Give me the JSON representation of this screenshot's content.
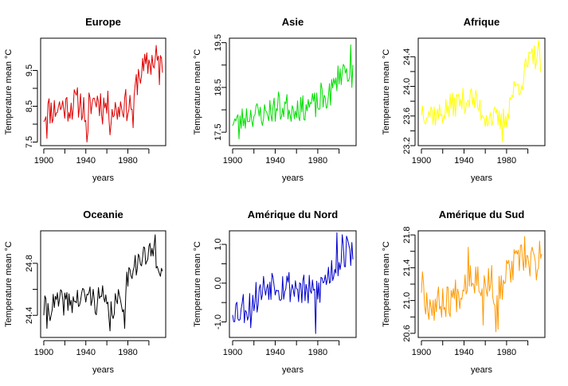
{
  "chart_data": [
    {
      "type": "line",
      "title": "Europe",
      "xlabel": "years",
      "ylabel": "Temperature mean °C",
      "color": "#dd0000",
      "xlim": [
        1897,
        2016
      ],
      "ylim": [
        7.4,
        10.4
      ],
      "xticks": [
        "1900",
        "1940",
        "1980"
      ],
      "yticks": [
        "7.5",
        "8.5",
        "9.5"
      ],
      "grid": false,
      "x_start": 1900,
      "x_end": 2013,
      "anchors": [
        [
          1900,
          8.3
        ],
        [
          1905,
          8.4
        ],
        [
          1910,
          8.4
        ],
        [
          1915,
          8.5
        ],
        [
          1920,
          8.5
        ],
        [
          1925,
          8.5
        ],
        [
          1930,
          8.6
        ],
        [
          1935,
          8.6
        ],
        [
          1940,
          8.3
        ],
        [
          1945,
          8.6
        ],
        [
          1950,
          8.7
        ],
        [
          1955,
          8.6
        ],
        [
          1960,
          8.5
        ],
        [
          1965,
          8.4
        ],
        [
          1970,
          8.4
        ],
        [
          1975,
          8.6
        ],
        [
          1980,
          8.5
        ],
        [
          1985,
          8.6
        ],
        [
          1990,
          9.4
        ],
        [
          1995,
          9.5
        ],
        [
          2000,
          9.7
        ],
        [
          2005,
          9.8
        ],
        [
          2010,
          9.8
        ],
        [
          2013,
          9.8
        ]
      ],
      "noise": 0.45,
      "seed": 11,
      "spikes": [
        [
          1903,
          7.6
        ],
        [
          1941,
          7.5
        ],
        [
          1942,
          7.8
        ],
        [
          1956,
          8.0
        ],
        [
          1963,
          7.7
        ],
        [
          1985,
          7.9
        ],
        [
          2007,
          10.2
        ],
        [
          2010,
          9.1
        ]
      ]
    },
    {
      "type": "line",
      "title": "Asie",
      "xlabel": "years",
      "ylabel": "Temperature mean °C",
      "color": "#00dd00",
      "xlim": [
        1897,
        2016
      ],
      "ylim": [
        17.2,
        19.6
      ],
      "xticks": [
        "1900",
        "1940",
        "1980"
      ],
      "yticks": [
        "17.5",
        "18.5",
        "19.5"
      ],
      "grid": false,
      "x_start": 1900,
      "x_end": 2013,
      "anchors": [
        [
          1900,
          17.8
        ],
        [
          1905,
          17.7
        ],
        [
          1910,
          17.8
        ],
        [
          1915,
          17.9
        ],
        [
          1920,
          17.9
        ],
        [
          1925,
          17.9
        ],
        [
          1930,
          17.9
        ],
        [
          1935,
          18.0
        ],
        [
          1940,
          18.0
        ],
        [
          1945,
          18.0
        ],
        [
          1950,
          18.1
        ],
        [
          1955,
          18.0
        ],
        [
          1960,
          18.1
        ],
        [
          1965,
          18.0
        ],
        [
          1970,
          18.1
        ],
        [
          1975,
          18.1
        ],
        [
          1980,
          18.1
        ],
        [
          1985,
          18.2
        ],
        [
          1990,
          18.3
        ],
        [
          1995,
          18.5
        ],
        [
          2000,
          18.8
        ],
        [
          2005,
          18.9
        ],
        [
          2010,
          18.8
        ],
        [
          2013,
          18.8
        ]
      ],
      "noise": 0.3,
      "seed": 23,
      "spikes": [
        [
          1906,
          17.35
        ],
        [
          1943,
          18.4
        ],
        [
          1983,
          18.6
        ],
        [
          2011,
          19.45
        ],
        [
          2012,
          18.5
        ]
      ]
    },
    {
      "type": "line",
      "title": "Afrique",
      "xlabel": "years",
      "ylabel": "Temperature mean °C",
      "color": "#ffff00",
      "xlim": [
        1897,
        2016
      ],
      "ylim": [
        23.2,
        24.65
      ],
      "xticks": [
        "1900",
        "1940",
        "1980"
      ],
      "yticks": [
        "23.2",
        "23.6",
        "24.0",
        "24.4"
      ],
      "grid": false,
      "x_start": 1900,
      "x_end": 2013,
      "anchors": [
        [
          1900,
          23.7
        ],
        [
          1905,
          23.65
        ],
        [
          1910,
          23.65
        ],
        [
          1915,
          23.6
        ],
        [
          1920,
          23.65
        ],
        [
          1925,
          23.7
        ],
        [
          1930,
          23.75
        ],
        [
          1935,
          23.8
        ],
        [
          1940,
          23.8
        ],
        [
          1945,
          23.85
        ],
        [
          1950,
          23.8
        ],
        [
          1955,
          23.7
        ],
        [
          1960,
          23.6
        ],
        [
          1965,
          23.6
        ],
        [
          1970,
          23.55
        ],
        [
          1975,
          23.5
        ],
        [
          1980,
          23.6
        ],
        [
          1985,
          23.9
        ],
        [
          1990,
          24.0
        ],
        [
          1995,
          24.1
        ],
        [
          2000,
          24.3
        ],
        [
          2005,
          24.4
        ],
        [
          2010,
          24.4
        ],
        [
          2013,
          24.3
        ]
      ],
      "noise": 0.18,
      "seed": 37,
      "spikes": [
        [
          1976,
          23.25
        ],
        [
          2010,
          24.62
        ],
        [
          2012,
          24.2
        ]
      ]
    },
    {
      "type": "line",
      "title": "Oceanie",
      "xlabel": "years",
      "ylabel": "Temperature mean °C",
      "color": "#000000",
      "xlim": [
        1897,
        2016
      ],
      "ylim": [
        24.23,
        25.05
      ],
      "xticks": [
        "1900",
        "1940",
        "1980"
      ],
      "yticks": [
        "24.4",
        "24.8"
      ],
      "grid": false,
      "x_start": 1900,
      "x_end": 2013,
      "anchors": [
        [
          1900,
          24.45
        ],
        [
          1905,
          24.45
        ],
        [
          1910,
          24.48
        ],
        [
          1915,
          24.5
        ],
        [
          1920,
          24.5
        ],
        [
          1925,
          24.5
        ],
        [
          1930,
          24.52
        ],
        [
          1935,
          24.52
        ],
        [
          1940,
          24.55
        ],
        [
          1945,
          24.55
        ],
        [
          1950,
          24.5
        ],
        [
          1955,
          24.55
        ],
        [
          1960,
          24.45
        ],
        [
          1965,
          24.45
        ],
        [
          1970,
          24.5
        ],
        [
          1975,
          24.5
        ],
        [
          1980,
          24.7
        ],
        [
          1985,
          24.8
        ],
        [
          1990,
          24.8
        ],
        [
          1995,
          24.85
        ],
        [
          2000,
          24.85
        ],
        [
          2005,
          24.9
        ],
        [
          2010,
          24.8
        ],
        [
          2013,
          24.75
        ]
      ],
      "noise": 0.1,
      "seed": 41,
      "spikes": [
        [
          1903,
          24.3
        ],
        [
          1963,
          24.28
        ],
        [
          1977,
          24.3
        ],
        [
          2006,
          25.02
        ],
        [
          2011,
          24.7
        ]
      ]
    },
    {
      "type": "line",
      "title": "Amérique du Nord",
      "xlabel": "years",
      "ylabel": "Temperature mean °C",
      "color": "#0000cc",
      "xlim": [
        1897,
        2016
      ],
      "ylim": [
        -1.4,
        1.35
      ],
      "xticks": [
        "1900",
        "1940",
        "1980"
      ],
      "yticks": [
        "-1.0",
        "0.0",
        "1.0"
      ],
      "grid": false,
      "x_start": 1900,
      "x_end": 2013,
      "anchors": [
        [
          1900,
          -0.6
        ],
        [
          1905,
          -0.7
        ],
        [
          1910,
          -0.6
        ],
        [
          1915,
          -0.6
        ],
        [
          1920,
          -0.4
        ],
        [
          1925,
          -0.3
        ],
        [
          1930,
          -0.1
        ],
        [
          1935,
          0.0
        ],
        [
          1940,
          0.1
        ],
        [
          1945,
          -0.1
        ],
        [
          1950,
          0.0
        ],
        [
          1955,
          -0.1
        ],
        [
          1960,
          -0.1
        ],
        [
          1965,
          -0.2
        ],
        [
          1970,
          -0.2
        ],
        [
          1975,
          -0.3
        ],
        [
          1980,
          -0.2
        ],
        [
          1985,
          0.0
        ],
        [
          1990,
          0.2
        ],
        [
          1995,
          0.4
        ],
        [
          2000,
          0.6
        ],
        [
          2005,
          0.8
        ],
        [
          2010,
          0.8
        ],
        [
          2013,
          0.9
        ]
      ],
      "noise": 0.45,
      "seed": 53,
      "spikes": [
        [
          1917,
          -1.15
        ],
        [
          1978,
          -1.3
        ],
        [
          1998,
          1.3
        ],
        [
          2003,
          1.25
        ],
        [
          2012,
          1.05
        ]
      ]
    },
    {
      "type": "line",
      "title": "Amérique du Sud",
      "xlabel": "years",
      "ylabel": "Temperature mean °C",
      "color": "#ff9900",
      "xlim": [
        1897,
        2016
      ],
      "ylim": [
        20.55,
        21.85
      ],
      "xticks": [
        "1900",
        "1940",
        "1980"
      ],
      "yticks": [
        "20.6",
        "21.0",
        "21.4",
        "21.8"
      ],
      "grid": false,
      "x_start": 1900,
      "x_end": 2013,
      "anchors": [
        [
          1900,
          21.2
        ],
        [
          1905,
          21.0
        ],
        [
          1910,
          20.95
        ],
        [
          1915,
          20.95
        ],
        [
          1920,
          21.0
        ],
        [
          1925,
          21.0
        ],
        [
          1930,
          21.05
        ],
        [
          1935,
          21.1
        ],
        [
          1940,
          21.2
        ],
        [
          1945,
          21.35
        ],
        [
          1950,
          21.3
        ],
        [
          1955,
          21.25
        ],
        [
          1960,
          21.2
        ],
        [
          1965,
          21.25
        ],
        [
          1970,
          21.1
        ],
        [
          1975,
          21.15
        ],
        [
          1980,
          21.3
        ],
        [
          1985,
          21.4
        ],
        [
          1990,
          21.45
        ],
        [
          1995,
          21.5
        ],
        [
          2000,
          21.45
        ],
        [
          2005,
          21.5
        ],
        [
          2010,
          21.55
        ],
        [
          2013,
          21.55
        ]
      ],
      "noise": 0.22,
      "seed": 67,
      "spikes": [
        [
          1901,
          21.35
        ],
        [
          1944,
          21.65
        ],
        [
          1958,
          20.7
        ],
        [
          1970,
          20.62
        ],
        [
          1972,
          20.65
        ],
        [
          1997,
          21.78
        ],
        [
          2008,
          21.25
        ]
      ]
    }
  ]
}
